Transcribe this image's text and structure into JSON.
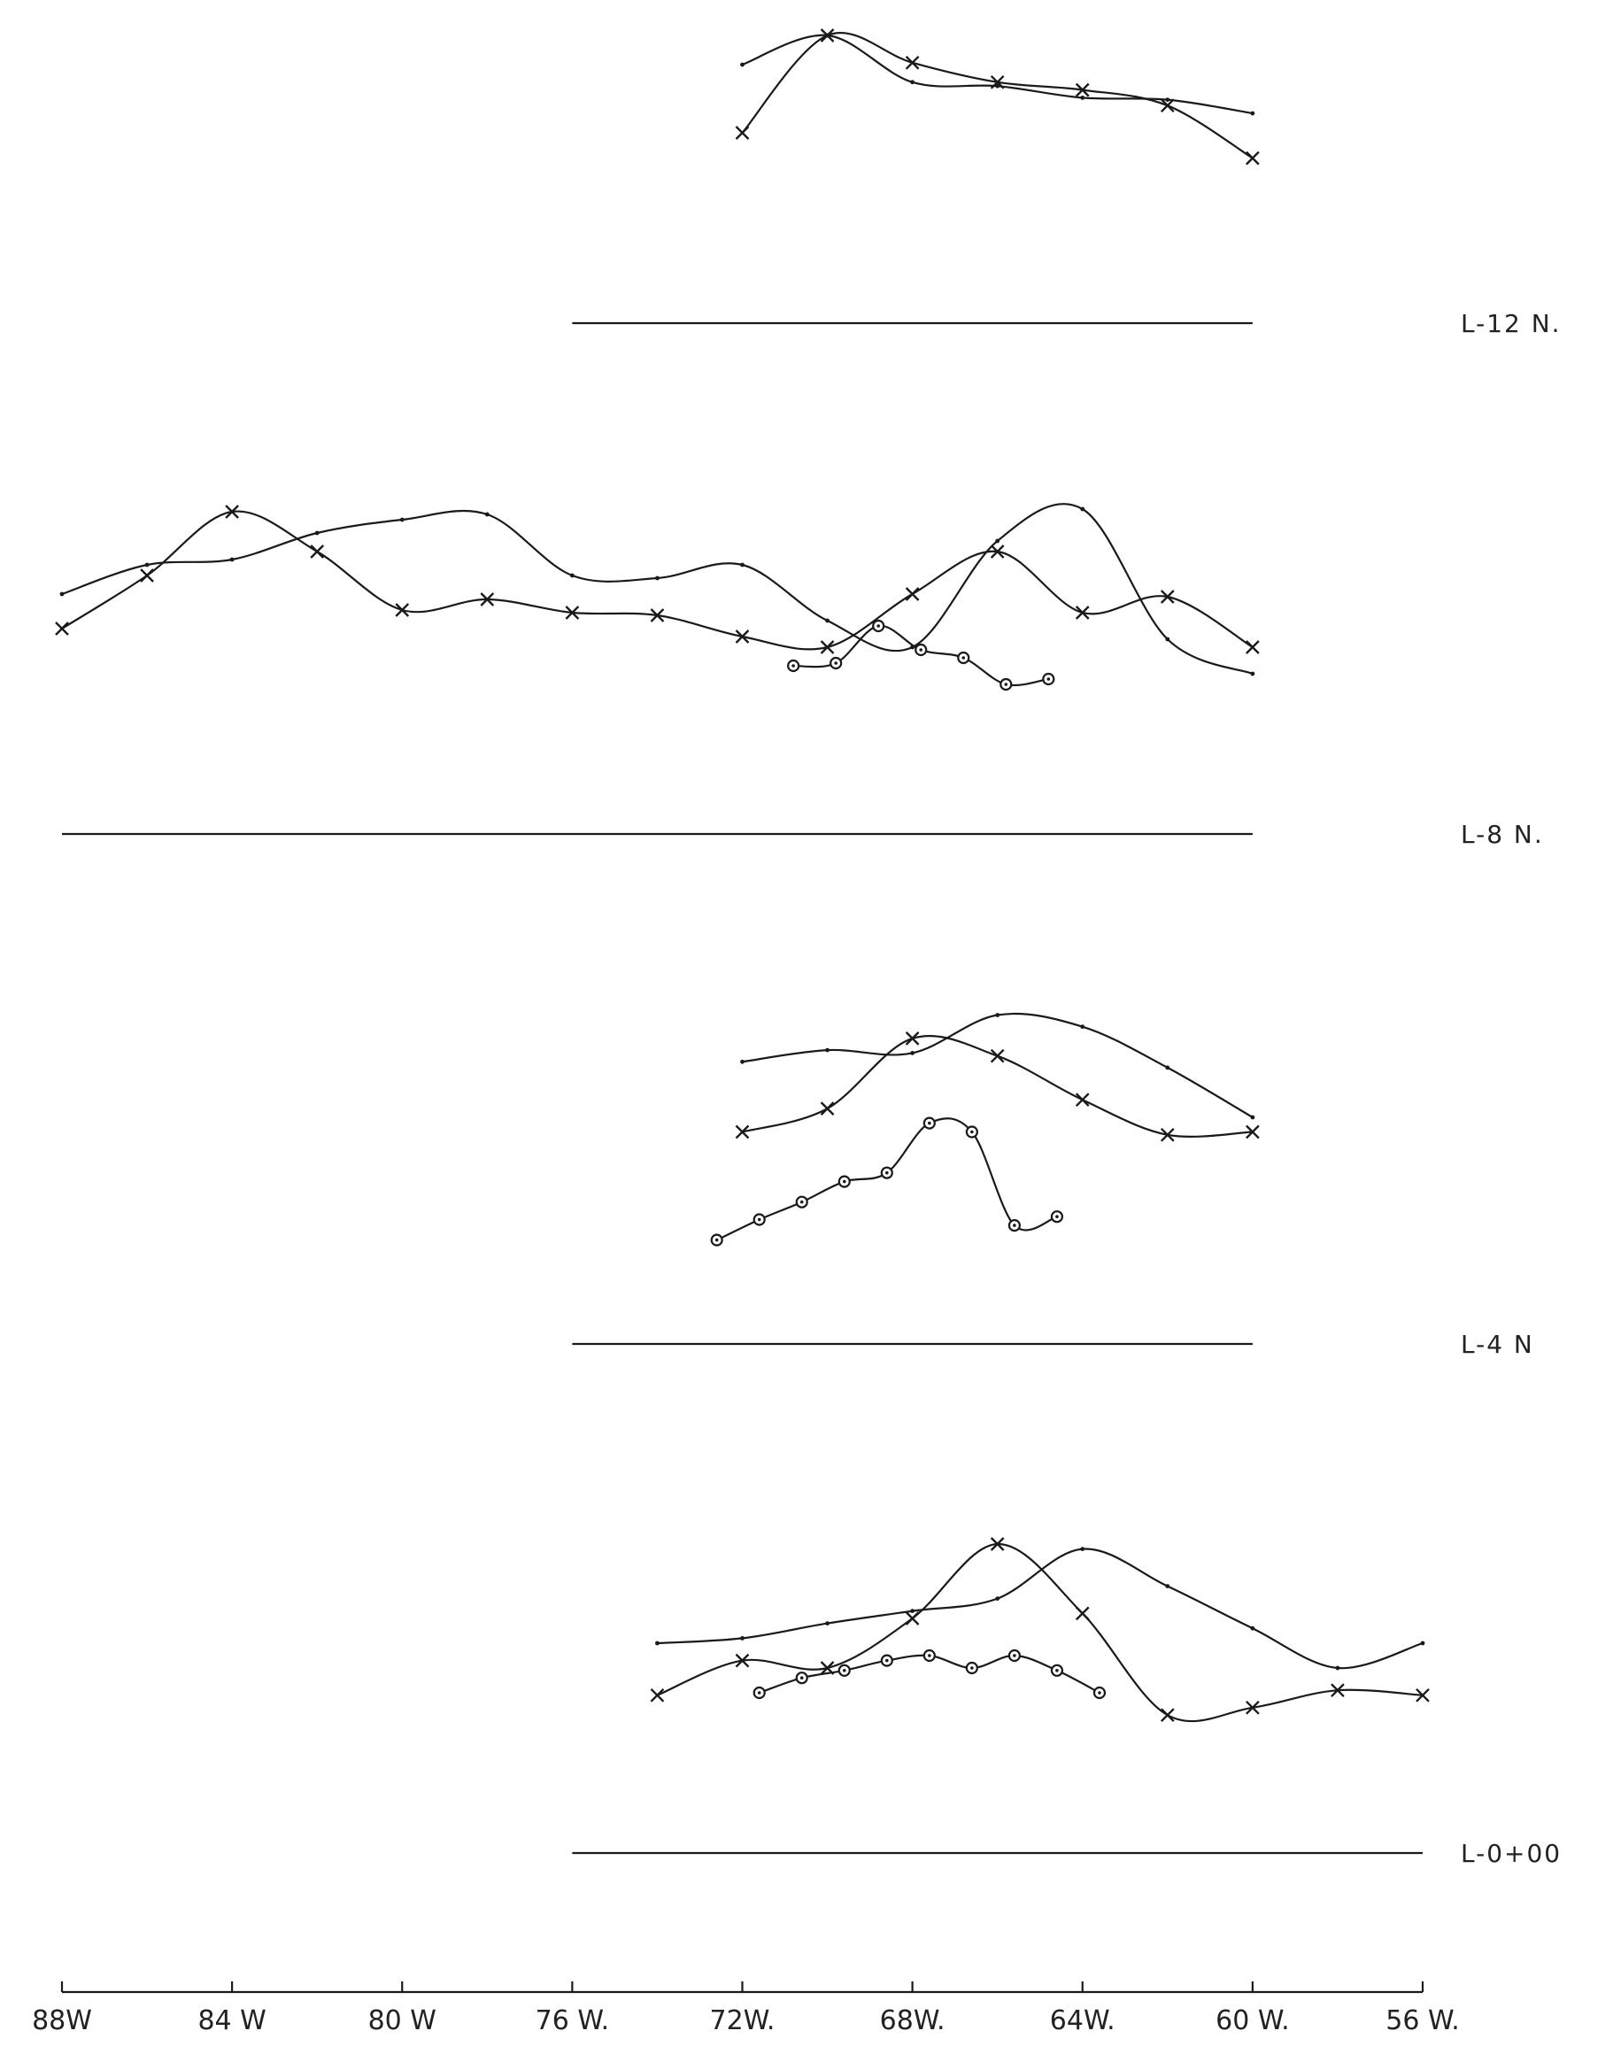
{
  "chart_data": {
    "type": "line",
    "x_axis": {
      "ticks": [
        {
          "value": 88,
          "label": "88W"
        },
        {
          "value": 84,
          "label": "84 W"
        },
        {
          "value": 80,
          "label": "80 W"
        },
        {
          "value": 76,
          "label": "76 W."
        },
        {
          "value": 72,
          "label": "72W."
        },
        {
          "value": 68,
          "label": "68W."
        },
        {
          "value": 64,
          "label": "64W."
        },
        {
          "value": 60,
          "label": "60 W."
        },
        {
          "value": 56,
          "label": "56 W."
        }
      ],
      "range": [
        88,
        56
      ],
      "reversed": true
    },
    "panels": [
      {
        "label": "L-12 N.",
        "baseline_extent": [
          76,
          60
        ],
        "y_range": [
          0,
          1
        ],
        "series": [
          {
            "marker": "x",
            "points": [
              [
                72,
                0.5
              ],
              [
                70,
                1.0
              ],
              [
                68,
                0.86
              ],
              [
                66,
                0.76
              ],
              [
                64,
                0.72
              ],
              [
                62,
                0.64
              ],
              [
                60,
                0.37
              ]
            ]
          },
          {
            "marker": "dot",
            "points": [
              [
                72,
                0.85
              ],
              [
                70,
                1.0
              ],
              [
                68,
                0.76
              ],
              [
                66,
                0.74
              ],
              [
                64,
                0.68
              ],
              [
                62,
                0.67
              ],
              [
                60,
                0.6
              ]
            ]
          }
        ]
      },
      {
        "label": "L-8 N.",
        "baseline_extent": [
          88,
          60
        ],
        "y_range": [
          0,
          1
        ],
        "series": [
          {
            "marker": "x",
            "points": [
              [
                88,
                0.45
              ],
              [
                86,
                0.65
              ],
              [
                84,
                0.89
              ],
              [
                82,
                0.74
              ],
              [
                80,
                0.52
              ],
              [
                78,
                0.56
              ],
              [
                76,
                0.51
              ],
              [
                74,
                0.5
              ],
              [
                72,
                0.42
              ],
              [
                70,
                0.38
              ],
              [
                68,
                0.58
              ],
              [
                66,
                0.74
              ],
              [
                64,
                0.51
              ],
              [
                62,
                0.57
              ],
              [
                60,
                0.38
              ]
            ]
          },
          {
            "marker": "dot",
            "points": [
              [
                88,
                0.58
              ],
              [
                86,
                0.69
              ],
              [
                84,
                0.71
              ],
              [
                82,
                0.81
              ],
              [
                80,
                0.86
              ],
              [
                78,
                0.88
              ],
              [
                76,
                0.65
              ],
              [
                74,
                0.64
              ],
              [
                72,
                0.69
              ],
              [
                70,
                0.48
              ],
              [
                68,
                0.38
              ],
              [
                66,
                0.78
              ],
              [
                64,
                0.9
              ],
              [
                62,
                0.41
              ],
              [
                60,
                0.28
              ]
            ]
          },
          {
            "marker": "circle",
            "points": [
              [
                70.8,
                0.31
              ],
              [
                69.8,
                0.32
              ],
              [
                68.8,
                0.46
              ],
              [
                67.8,
                0.37
              ],
              [
                66.8,
                0.34
              ],
              [
                65.8,
                0.24
              ],
              [
                64.8,
                0.26
              ]
            ]
          }
        ]
      },
      {
        "label": "L-4 N",
        "baseline_extent": [
          76,
          60
        ],
        "y_range": [
          0,
          1
        ],
        "series": [
          {
            "marker": "x",
            "points": [
              [
                72,
                0.55
              ],
              [
                70,
                0.63
              ],
              [
                68,
                0.87
              ],
              [
                66,
                0.81
              ],
              [
                64,
                0.66
              ],
              [
                62,
                0.54
              ],
              [
                60,
                0.55
              ]
            ]
          },
          {
            "marker": "dot",
            "points": [
              [
                72,
                0.79
              ],
              [
                70,
                0.83
              ],
              [
                68,
                0.82
              ],
              [
                66,
                0.95
              ],
              [
                64,
                0.91
              ],
              [
                62,
                0.77
              ],
              [
                60,
                0.6
              ]
            ]
          },
          {
            "marker": "circle",
            "points": [
              [
                72.6,
                0.18
              ],
              [
                71.6,
                0.25
              ],
              [
                70.6,
                0.31
              ],
              [
                69.6,
                0.38
              ],
              [
                68.6,
                0.41
              ],
              [
                67.6,
                0.58
              ],
              [
                66.6,
                0.55
              ],
              [
                65.6,
                0.23
              ],
              [
                64.6,
                0.26
              ]
            ]
          }
        ]
      },
      {
        "label": "L-0+00",
        "baseline_extent": [
          76,
          56
        ],
        "y_range": [
          0,
          1
        ],
        "series": [
          {
            "marker": "x",
            "points": [
              [
                74,
                0.34
              ],
              [
                72,
                0.48
              ],
              [
                70,
                0.45
              ],
              [
                68,
                0.65
              ],
              [
                66,
                0.95
              ],
              [
                64,
                0.67
              ],
              [
                62,
                0.26
              ],
              [
                60,
                0.29
              ],
              [
                58,
                0.36
              ],
              [
                56,
                0.34
              ]
            ]
          },
          {
            "marker": "dot",
            "points": [
              [
                74,
                0.55
              ],
              [
                72,
                0.57
              ],
              [
                70,
                0.63
              ],
              [
                68,
                0.68
              ],
              [
                66,
                0.73
              ],
              [
                64,
                0.93
              ],
              [
                62,
                0.78
              ],
              [
                60,
                0.61
              ],
              [
                58,
                0.45
              ],
              [
                56,
                0.55
              ]
            ]
          },
          {
            "marker": "circle",
            "points": [
              [
                71.6,
                0.35
              ],
              [
                70.6,
                0.41
              ],
              [
                69.6,
                0.44
              ],
              [
                68.6,
                0.48
              ],
              [
                67.6,
                0.5
              ],
              [
                66.6,
                0.45
              ],
              [
                65.6,
                0.5
              ],
              [
                64.6,
                0.44
              ],
              [
                63.6,
                0.35
              ]
            ]
          }
        ]
      }
    ]
  }
}
